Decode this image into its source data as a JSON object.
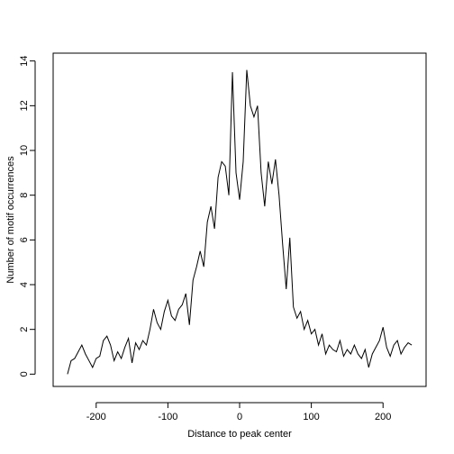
{
  "chart_data": {
    "type": "line",
    "xlabel": "Distance to peak center",
    "ylabel": "Number of motif occurrences",
    "x": [
      -240,
      -235,
      -230,
      -225,
      -220,
      -215,
      -210,
      -205,
      -200,
      -195,
      -190,
      -185,
      -180,
      -175,
      -170,
      -165,
      -160,
      -155,
      -150,
      -145,
      -140,
      -135,
      -130,
      -125,
      -120,
      -115,
      -110,
      -105,
      -100,
      -95,
      -90,
      -85,
      -80,
      -75,
      -70,
      -65,
      -60,
      -55,
      -50,
      -45,
      -40,
      -35,
      -30,
      -25,
      -20,
      -15,
      -10,
      -5,
      0,
      5,
      10,
      15,
      20,
      25,
      30,
      35,
      40,
      45,
      50,
      55,
      60,
      65,
      70,
      75,
      80,
      85,
      90,
      95,
      100,
      105,
      110,
      115,
      120,
      125,
      130,
      135,
      140,
      145,
      150,
      155,
      160,
      165,
      170,
      175,
      180,
      185,
      190,
      195,
      200,
      205,
      210,
      215,
      220,
      225,
      230,
      235,
      240
    ],
    "series": [
      {
        "color": "#000000",
        "values": [
          0,
          0.6,
          0.7,
          1.0,
          1.3,
          0.9,
          0.6,
          0.3,
          0.7,
          0.8,
          1.5,
          1.7,
          1.3,
          0.6,
          1.0,
          0.7,
          1.2,
          1.6,
          0.5,
          1.4,
          1.1,
          1.5,
          1.3,
          2.0,
          2.9,
          2.3,
          2.0,
          2.8,
          3.3,
          2.6,
          2.4,
          2.9,
          3.1,
          3.6,
          2.2,
          4.2,
          4.8,
          5.5,
          4.8,
          6.8,
          7.5,
          6.5,
          8.8,
          9.5,
          9.3,
          8.0,
          13.5,
          9.0,
          7.8,
          9.5,
          13.6,
          12.0,
          11.5,
          12.0,
          9.0,
          7.5,
          9.5,
          8.5,
          9.6,
          8.0,
          5.8,
          3.8,
          6.1,
          3.0,
          2.5,
          2.8,
          2.0,
          2.4,
          1.8,
          2.0,
          1.3,
          1.8,
          0.9,
          1.3,
          1.1,
          1.0,
          1.5,
          0.8,
          1.1,
          0.9,
          1.3,
          0.9,
          0.7,
          1.1,
          0.3,
          0.9,
          1.2,
          1.5,
          2.1,
          1.2,
          0.8,
          1.3,
          1.5,
          0.9,
          1.2,
          1.4,
          1.3
        ]
      }
    ],
    "xlim": [
      -260,
      260
    ],
    "ylim": [
      -0.55,
      14.35
    ],
    "xticks": [
      -200,
      -100,
      0,
      100,
      200
    ],
    "yticks": [
      0,
      2,
      4,
      6,
      8,
      10,
      12,
      14
    ]
  }
}
